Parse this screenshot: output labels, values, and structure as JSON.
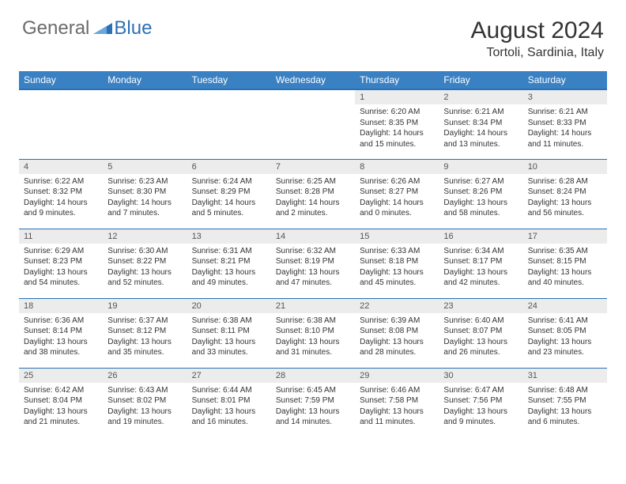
{
  "brand": {
    "part1": "General",
    "part2": "Blue"
  },
  "title": "August 2024",
  "location": "Tortoli, Sardinia, Italy",
  "colors": {
    "header_bg": "#3a81c4",
    "border": "#2b6fb5",
    "daynum_bg": "#ececec",
    "text": "#333333",
    "logo_gray": "#6b6b6b",
    "logo_blue": "#2b6fb5"
  },
  "weekdays": [
    "Sunday",
    "Monday",
    "Tuesday",
    "Wednesday",
    "Thursday",
    "Friday",
    "Saturday"
  ],
  "grid": [
    [
      {
        "day": "",
        "lines": []
      },
      {
        "day": "",
        "lines": []
      },
      {
        "day": "",
        "lines": []
      },
      {
        "day": "",
        "lines": []
      },
      {
        "day": "1",
        "lines": [
          "Sunrise: 6:20 AM",
          "Sunset: 8:35 PM",
          "Daylight: 14 hours and 15 minutes."
        ]
      },
      {
        "day": "2",
        "lines": [
          "Sunrise: 6:21 AM",
          "Sunset: 8:34 PM",
          "Daylight: 14 hours and 13 minutes."
        ]
      },
      {
        "day": "3",
        "lines": [
          "Sunrise: 6:21 AM",
          "Sunset: 8:33 PM",
          "Daylight: 14 hours and 11 minutes."
        ]
      }
    ],
    [
      {
        "day": "4",
        "lines": [
          "Sunrise: 6:22 AM",
          "Sunset: 8:32 PM",
          "Daylight: 14 hours and 9 minutes."
        ]
      },
      {
        "day": "5",
        "lines": [
          "Sunrise: 6:23 AM",
          "Sunset: 8:30 PM",
          "Daylight: 14 hours and 7 minutes."
        ]
      },
      {
        "day": "6",
        "lines": [
          "Sunrise: 6:24 AM",
          "Sunset: 8:29 PM",
          "Daylight: 14 hours and 5 minutes."
        ]
      },
      {
        "day": "7",
        "lines": [
          "Sunrise: 6:25 AM",
          "Sunset: 8:28 PM",
          "Daylight: 14 hours and 2 minutes."
        ]
      },
      {
        "day": "8",
        "lines": [
          "Sunrise: 6:26 AM",
          "Sunset: 8:27 PM",
          "Daylight: 14 hours and 0 minutes."
        ]
      },
      {
        "day": "9",
        "lines": [
          "Sunrise: 6:27 AM",
          "Sunset: 8:26 PM",
          "Daylight: 13 hours and 58 minutes."
        ]
      },
      {
        "day": "10",
        "lines": [
          "Sunrise: 6:28 AM",
          "Sunset: 8:24 PM",
          "Daylight: 13 hours and 56 minutes."
        ]
      }
    ],
    [
      {
        "day": "11",
        "lines": [
          "Sunrise: 6:29 AM",
          "Sunset: 8:23 PM",
          "Daylight: 13 hours and 54 minutes."
        ]
      },
      {
        "day": "12",
        "lines": [
          "Sunrise: 6:30 AM",
          "Sunset: 8:22 PM",
          "Daylight: 13 hours and 52 minutes."
        ]
      },
      {
        "day": "13",
        "lines": [
          "Sunrise: 6:31 AM",
          "Sunset: 8:21 PM",
          "Daylight: 13 hours and 49 minutes."
        ]
      },
      {
        "day": "14",
        "lines": [
          "Sunrise: 6:32 AM",
          "Sunset: 8:19 PM",
          "Daylight: 13 hours and 47 minutes."
        ]
      },
      {
        "day": "15",
        "lines": [
          "Sunrise: 6:33 AM",
          "Sunset: 8:18 PM",
          "Daylight: 13 hours and 45 minutes."
        ]
      },
      {
        "day": "16",
        "lines": [
          "Sunrise: 6:34 AM",
          "Sunset: 8:17 PM",
          "Daylight: 13 hours and 42 minutes."
        ]
      },
      {
        "day": "17",
        "lines": [
          "Sunrise: 6:35 AM",
          "Sunset: 8:15 PM",
          "Daylight: 13 hours and 40 minutes."
        ]
      }
    ],
    [
      {
        "day": "18",
        "lines": [
          "Sunrise: 6:36 AM",
          "Sunset: 8:14 PM",
          "Daylight: 13 hours and 38 minutes."
        ]
      },
      {
        "day": "19",
        "lines": [
          "Sunrise: 6:37 AM",
          "Sunset: 8:12 PM",
          "Daylight: 13 hours and 35 minutes."
        ]
      },
      {
        "day": "20",
        "lines": [
          "Sunrise: 6:38 AM",
          "Sunset: 8:11 PM",
          "Daylight: 13 hours and 33 minutes."
        ]
      },
      {
        "day": "21",
        "lines": [
          "Sunrise: 6:38 AM",
          "Sunset: 8:10 PM",
          "Daylight: 13 hours and 31 minutes."
        ]
      },
      {
        "day": "22",
        "lines": [
          "Sunrise: 6:39 AM",
          "Sunset: 8:08 PM",
          "Daylight: 13 hours and 28 minutes."
        ]
      },
      {
        "day": "23",
        "lines": [
          "Sunrise: 6:40 AM",
          "Sunset: 8:07 PM",
          "Daylight: 13 hours and 26 minutes."
        ]
      },
      {
        "day": "24",
        "lines": [
          "Sunrise: 6:41 AM",
          "Sunset: 8:05 PM",
          "Daylight: 13 hours and 23 minutes."
        ]
      }
    ],
    [
      {
        "day": "25",
        "lines": [
          "Sunrise: 6:42 AM",
          "Sunset: 8:04 PM",
          "Daylight: 13 hours and 21 minutes."
        ]
      },
      {
        "day": "26",
        "lines": [
          "Sunrise: 6:43 AM",
          "Sunset: 8:02 PM",
          "Daylight: 13 hours and 19 minutes."
        ]
      },
      {
        "day": "27",
        "lines": [
          "Sunrise: 6:44 AM",
          "Sunset: 8:01 PM",
          "Daylight: 13 hours and 16 minutes."
        ]
      },
      {
        "day": "28",
        "lines": [
          "Sunrise: 6:45 AM",
          "Sunset: 7:59 PM",
          "Daylight: 13 hours and 14 minutes."
        ]
      },
      {
        "day": "29",
        "lines": [
          "Sunrise: 6:46 AM",
          "Sunset: 7:58 PM",
          "Daylight: 13 hours and 11 minutes."
        ]
      },
      {
        "day": "30",
        "lines": [
          "Sunrise: 6:47 AM",
          "Sunset: 7:56 PM",
          "Daylight: 13 hours and 9 minutes."
        ]
      },
      {
        "day": "31",
        "lines": [
          "Sunrise: 6:48 AM",
          "Sunset: 7:55 PM",
          "Daylight: 13 hours and 6 minutes."
        ]
      }
    ]
  ]
}
